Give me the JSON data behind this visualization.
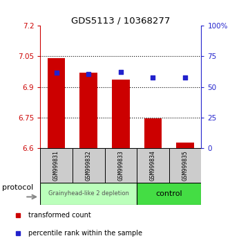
{
  "title": "GDS5113 / 10368277",
  "categories": [
    "GSM999831",
    "GSM999832",
    "GSM999833",
    "GSM999834",
    "GSM999835"
  ],
  "bar_bottoms": [
    6.6,
    6.6,
    6.6,
    6.6,
    6.6
  ],
  "bar_tops": [
    7.04,
    6.97,
    6.935,
    6.748,
    6.628
  ],
  "blue_pct": [
    61.5,
    60.5,
    62.5,
    58.0,
    57.5
  ],
  "bar_color": "#cc0000",
  "dot_color": "#2222cc",
  "ylim_left": [
    6.6,
    7.2
  ],
  "yticks_left": [
    6.6,
    6.75,
    6.9,
    7.05,
    7.2
  ],
  "ylim_right": [
    0,
    100
  ],
  "yticks_right": [
    0,
    25,
    50,
    75,
    100
  ],
  "ytick_labels_right": [
    "0",
    "25",
    "50",
    "75",
    "100%"
  ],
  "protocol_groups": [
    {
      "label": "Grainyhead-like 2 depletion",
      "indices": [
        0,
        1,
        2
      ],
      "color": "#bbffbb",
      "text_color": "#555555",
      "font_size": 6
    },
    {
      "label": "control",
      "indices": [
        3,
        4
      ],
      "color": "#44dd44",
      "text_color": "#000000",
      "font_size": 8
    }
  ],
  "protocol_label": "protocol",
  "legend_items": [
    {
      "label": "transformed count",
      "color": "#cc0000"
    },
    {
      "label": "percentile rank within the sample",
      "color": "#2222cc"
    }
  ],
  "left_axis_color": "#cc0000",
  "right_axis_color": "#2222cc",
  "bar_width": 0.55,
  "sample_box_color": "#cccccc",
  "arrow_color": "#888888"
}
